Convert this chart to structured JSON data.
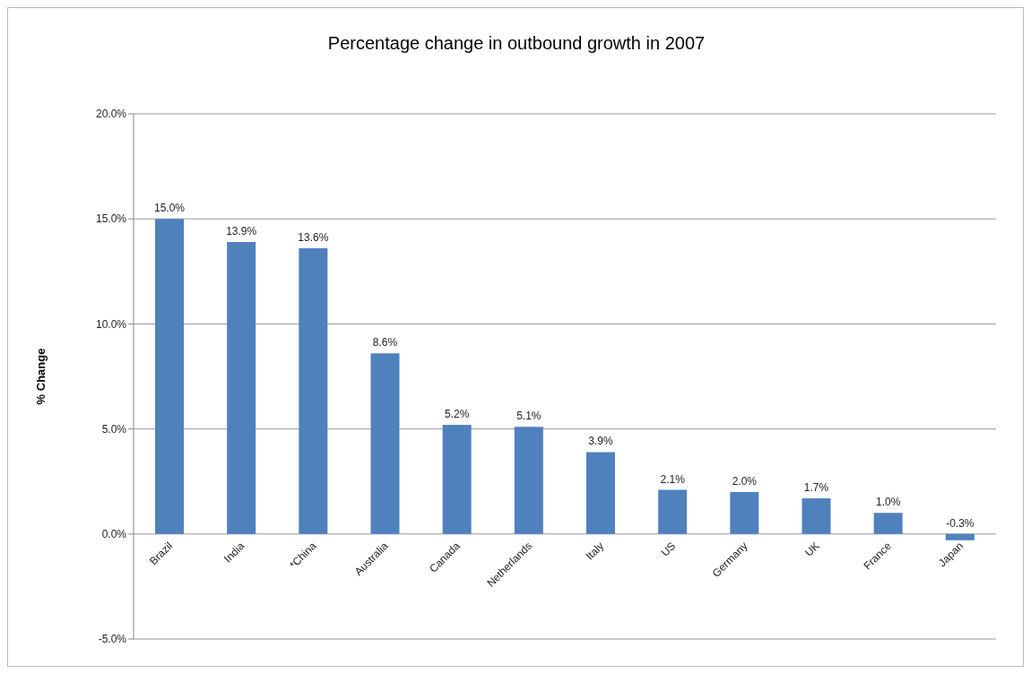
{
  "chart_data": {
    "type": "bar",
    "title": "Percentage change in outbound growth in 2007",
    "ylabel": "% Change",
    "categories": [
      "Brazil",
      "India",
      "*China",
      "Australia",
      "Canada",
      "Netherlands",
      "Italy",
      "US",
      "Germany",
      "UK",
      "France",
      "Japan"
    ],
    "values": [
      15.0,
      13.9,
      13.6,
      8.6,
      5.2,
      5.1,
      3.9,
      2.1,
      2.0,
      1.7,
      1.0,
      -0.3
    ],
    "value_labels": [
      "15.0%",
      "13.9%",
      "13.6%",
      "8.6%",
      "5.2%",
      "5.1%",
      "3.9%",
      "2.1%",
      "2.0%",
      "1.7%",
      "1.0%",
      "-0.3%"
    ],
    "color": "#4f81bd",
    "ylim": [
      -5,
      20
    ],
    "yticks": [
      {
        "value": -5,
        "label": "-5.0%"
      },
      {
        "value": 0,
        "label": "0.0%"
      },
      {
        "value": 5,
        "label": "5.0%"
      },
      {
        "value": 10,
        "label": "10.0%"
      },
      {
        "value": 15,
        "label": "15.0%"
      },
      {
        "value": 20,
        "label": "20.0%"
      }
    ],
    "grid": "y"
  }
}
